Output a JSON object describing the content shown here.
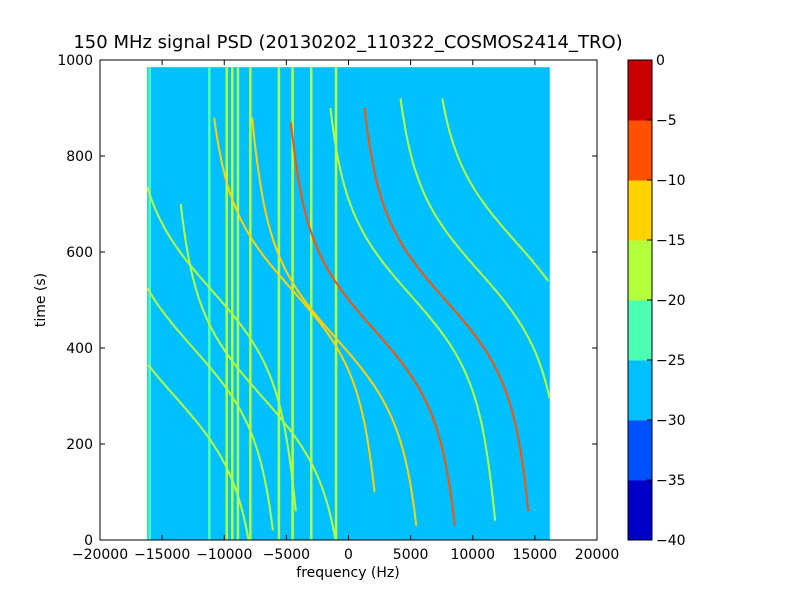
{
  "chart_data": {
    "type": "heatmap",
    "title": "150 MHz signal PSD (20130202_110322_COSMOS2414_TRO)",
    "xlabel": "frequency (Hz)",
    "ylabel": "time (s)",
    "xlim": [
      -20000,
      20000
    ],
    "ylim": [
      0,
      1000
    ],
    "x_ticks": [
      -20000,
      -15000,
      -10000,
      -5000,
      0,
      5000,
      10000,
      15000,
      20000
    ],
    "x_tick_labels": [
      "−20000",
      "−15000",
      "−10000",
      "−5000",
      "0",
      "5000",
      "10000",
      "15000",
      "20000"
    ],
    "y_ticks": [
      0,
      200,
      400,
      600,
      800,
      1000
    ],
    "y_tick_labels": [
      "0",
      "200",
      "400",
      "600",
      "800",
      "1000"
    ],
    "data_extent": {
      "freq": [
        -16200,
        16200
      ],
      "time": [
        0,
        985
      ]
    },
    "background_level": -27.5,
    "colorbar": {
      "range": [
        -40,
        0
      ],
      "levels": [
        -40,
        -35,
        -30,
        -25,
        -20,
        -15,
        -10,
        -5,
        0
      ],
      "tick_labels": [
        "−40",
        "−35",
        "−30",
        "−25",
        "−20",
        "−15",
        "−10",
        "−5",
        "0"
      ],
      "colors": [
        "#0000c8",
        "#0050ff",
        "#00c0ff",
        "#4dffb3",
        "#b3ff3c",
        "#ffd200",
        "#ff5000",
        "#c80000"
      ]
    },
    "constant_tones": [
      {
        "freq": -16000,
        "level": -22
      },
      {
        "freq": -9800,
        "level": -17
      },
      {
        "freq": -9350,
        "level": -17
      },
      {
        "freq": -8900,
        "level": -17
      },
      {
        "freq": -7900,
        "level": -17
      },
      {
        "freq": -5600,
        "level": -17
      },
      {
        "freq": -4500,
        "level": -17
      },
      {
        "freq": -3000,
        "level": -17
      },
      {
        "freq": -1000,
        "level": -17
      },
      {
        "freq": -11200,
        "level": -22
      }
    ],
    "doppler_tracks": [
      {
        "center_freq": 2000,
        "t0": 440,
        "t_start": 30,
        "t_end": 870,
        "level": -7
      },
      {
        "center_freq": 7800,
        "t0": 500,
        "t_start": 60,
        "t_end": 900,
        "level": -7
      },
      {
        "center_freq": -1000,
        "t0": 420,
        "t_start": 30,
        "t_end": 880,
        "level": -12
      },
      {
        "center_freq": -4500,
        "t0": 520,
        "t_start": 100,
        "t_end": 880,
        "level": -13
      },
      {
        "center_freq": -12500,
        "t0": 400,
        "t_start": 20,
        "t_end": 900,
        "level": -17
      },
      {
        "center_freq": -11000,
        "t0": 520,
        "t_start": 60,
        "t_end": 900,
        "level": -17
      },
      {
        "center_freq": 5000,
        "t0": 510,
        "t_start": 40,
        "t_end": 900,
        "level": -18
      },
      {
        "center_freq": 10500,
        "t0": 560,
        "t_start": 100,
        "t_end": 920,
        "level": -20
      },
      {
        "center_freq": 13500,
        "t0": 620,
        "t_start": 200,
        "t_end": 920,
        "level": -20
      },
      {
        "center_freq": -7000,
        "t0": 300,
        "t_start": 0,
        "t_end": 700,
        "level": -20
      },
      {
        "center_freq": -14000,
        "t0": 300,
        "t_start": 0,
        "t_end": 700,
        "level": -20
      }
    ]
  }
}
